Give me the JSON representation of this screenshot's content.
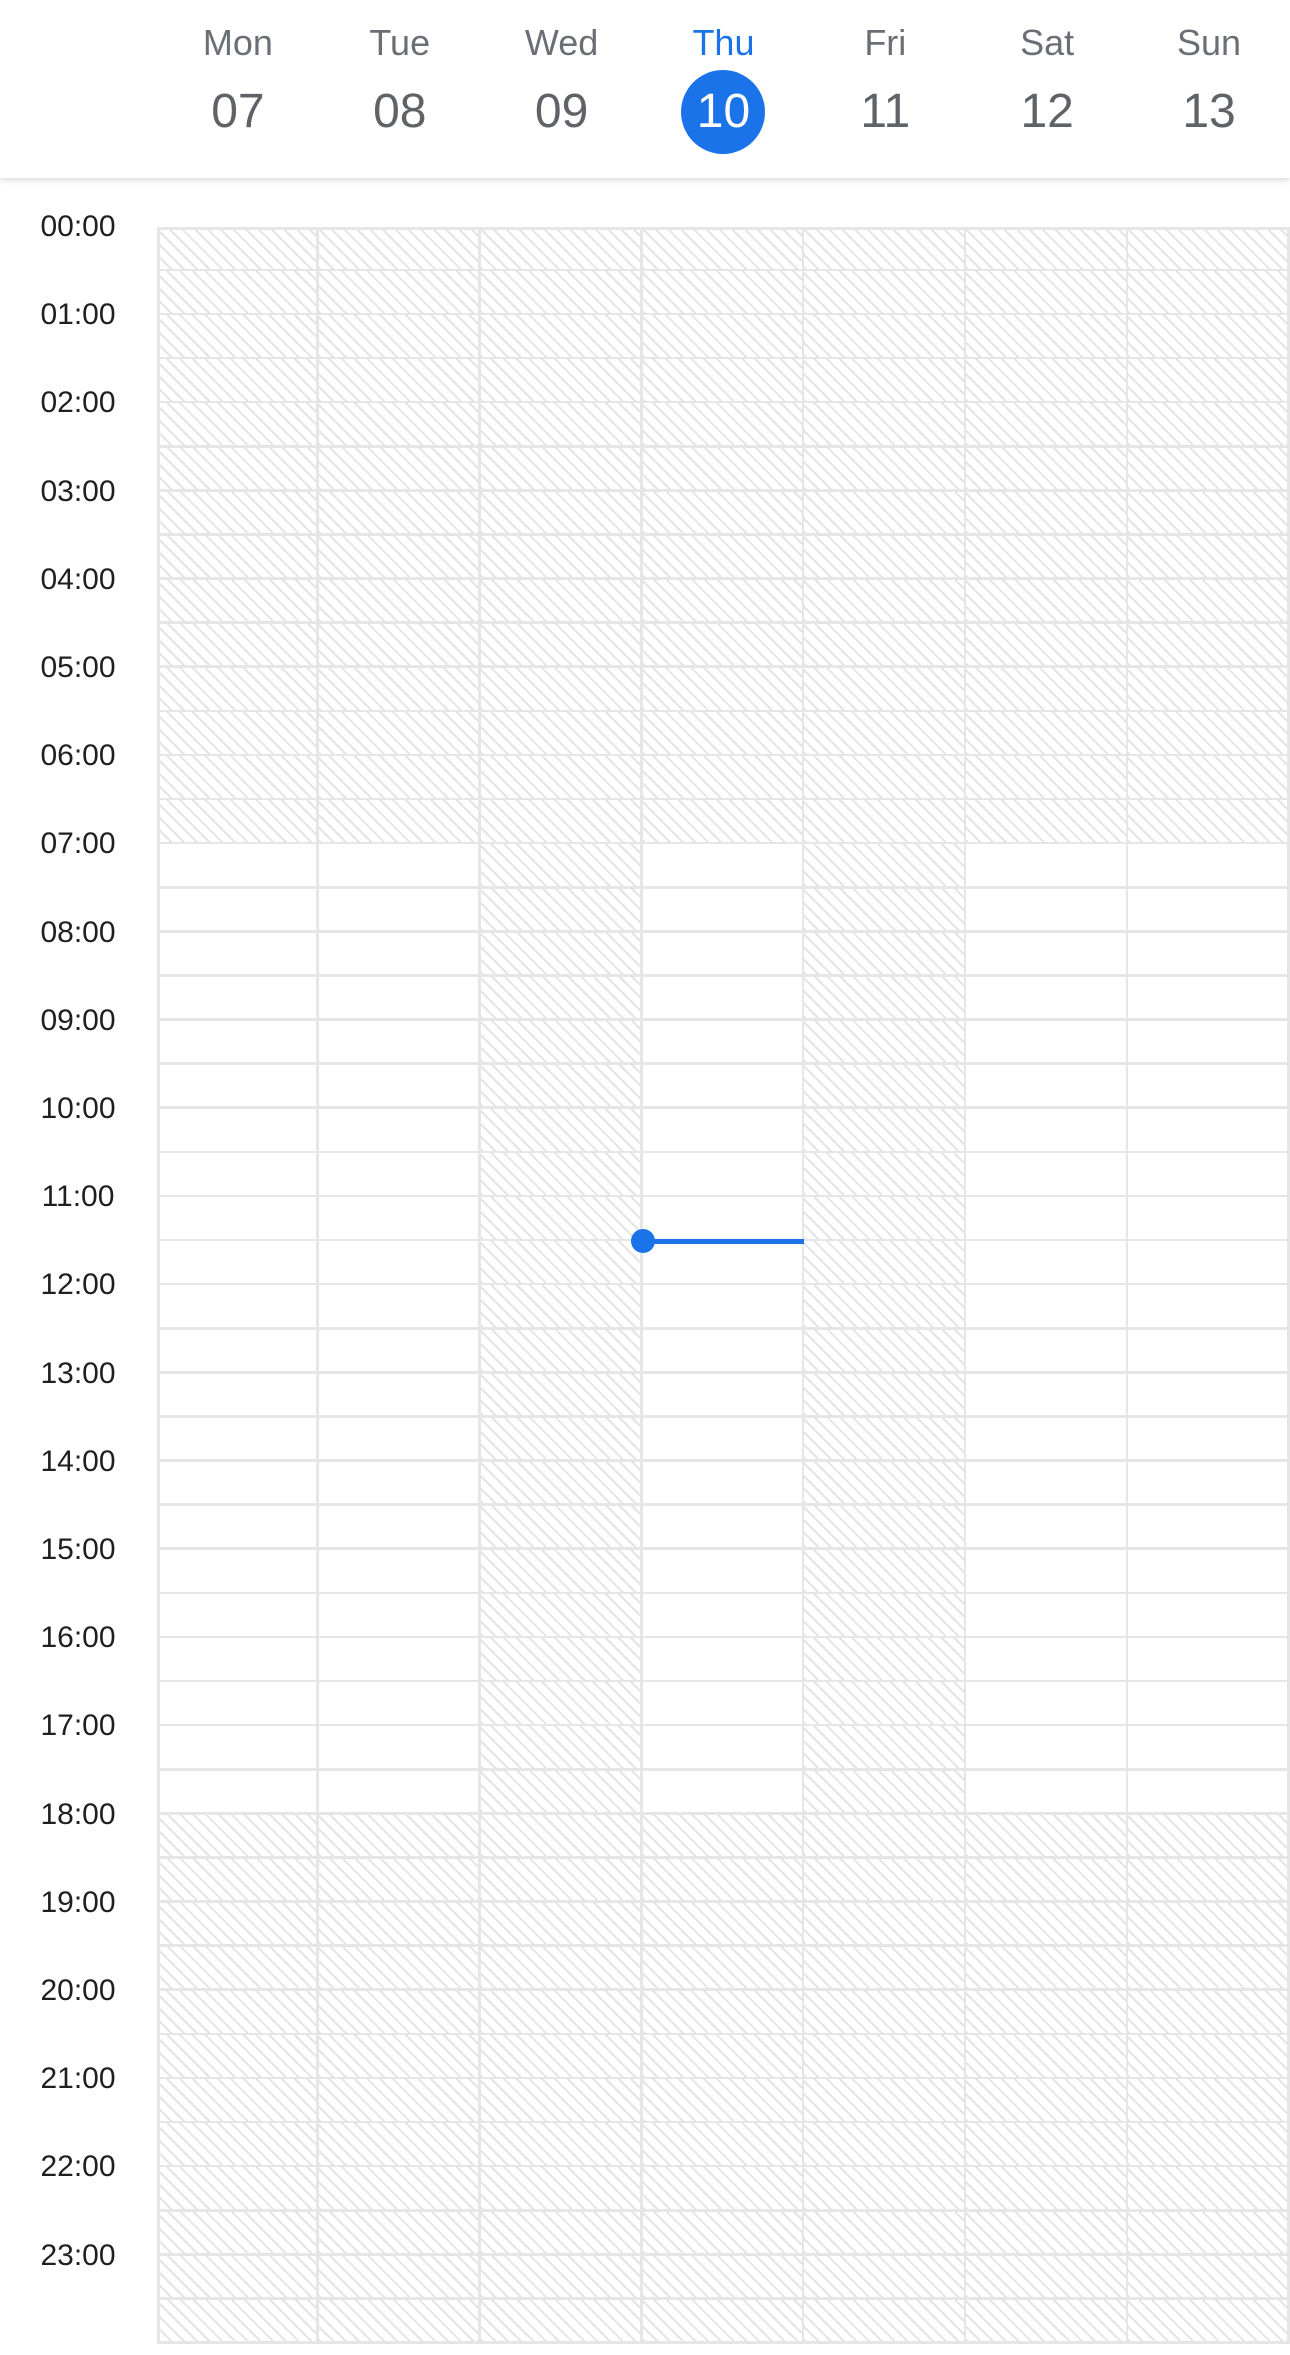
{
  "week": {
    "days": [
      {
        "name": "Mon",
        "date": "07"
      },
      {
        "name": "Tue",
        "date": "08"
      },
      {
        "name": "Wed",
        "date": "09"
      },
      {
        "name": "Thu",
        "date": "10"
      },
      {
        "name": "Fri",
        "date": "11"
      },
      {
        "name": "Sat",
        "date": "12"
      },
      {
        "name": "Sun",
        "date": "13"
      }
    ],
    "today_index": 3
  },
  "hours": [
    "00:00",
    "01:00",
    "02:00",
    "03:00",
    "04:00",
    "05:00",
    "06:00",
    "07:00",
    "08:00",
    "09:00",
    "10:00",
    "11:00",
    "12:00",
    "13:00",
    "14:00",
    "15:00",
    "16:00",
    "17:00",
    "18:00",
    "19:00",
    "20:00",
    "21:00",
    "22:00",
    "23:00"
  ],
  "availability": {
    "working_hours": {
      "start": 7,
      "end": 18
    },
    "fully_unavailable_days": [
      2,
      4
    ]
  },
  "current_time": {
    "hour": 11.5,
    "day_index": 3
  },
  "colors": {
    "accent": "#1a73e8",
    "grid_line": "#e6e6e6",
    "hatch": "#e4e4e4"
  }
}
